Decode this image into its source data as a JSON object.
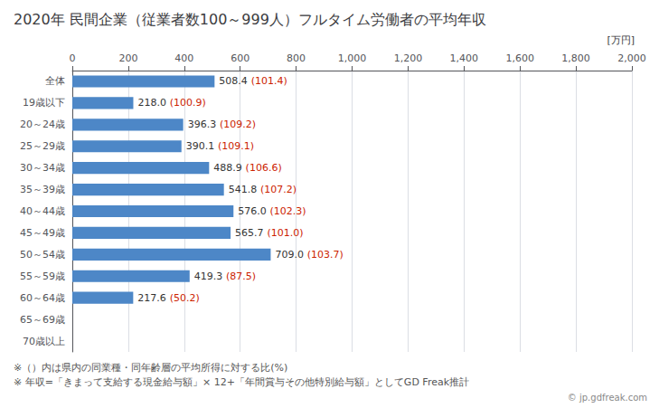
{
  "chart_data": {
    "type": "bar",
    "orientation": "horizontal",
    "title": "2020年 民間企業（従業者数100～999人）フルタイム労働者の平均年収",
    "xlabel": "[万円]",
    "categories": [
      "全体",
      "19歳以下",
      "20～24歳",
      "25～29歳",
      "30～34歳",
      "35～39歳",
      "40～44歳",
      "45～49歳",
      "50～54歳",
      "55～59歳",
      "60～64歳",
      "65～69歳",
      "70歳以上"
    ],
    "values": [
      508.4,
      218.0,
      396.3,
      390.1,
      488.9,
      541.8,
      576.0,
      565.7,
      709.0,
      419.3,
      217.6,
      0,
      0
    ],
    "value_labels": [
      "508.4",
      "218.0",
      "396.3",
      "390.1",
      "488.9",
      "541.8",
      "576.0",
      "565.7",
      "709.0",
      "419.3",
      "217.6",
      null,
      null
    ],
    "ratios": [
      101.4,
      100.9,
      109.2,
      109.1,
      106.6,
      107.2,
      102.3,
      101.0,
      103.7,
      87.5,
      50.2,
      null,
      null
    ],
    "ratio_labels": [
      "(101.4)",
      "(100.9)",
      "(109.2)",
      "(109.1)",
      "(106.6)",
      "(107.2)",
      "(102.3)",
      "(101.0)",
      "(103.7)",
      "(87.5)",
      "(50.2)",
      null,
      null
    ],
    "ratio_color": "#cc2200",
    "color": "#4d87c7",
    "xlim": [
      0,
      2000
    ],
    "xticks": [
      0,
      200,
      400,
      600,
      800,
      1000,
      1200,
      1400,
      1600,
      1800,
      2000
    ],
    "grid": true,
    "data_labels": true,
    "annotations": [
      "※（）内は県内の同業種・同年齢層の平均所得に対する比(%)",
      "※ 年収=「きまって支給する現金給与額」× 12+「年間賞与その他特別給与額」としてGD Freak推計",
      "© jp.gdfreak.com"
    ]
  }
}
